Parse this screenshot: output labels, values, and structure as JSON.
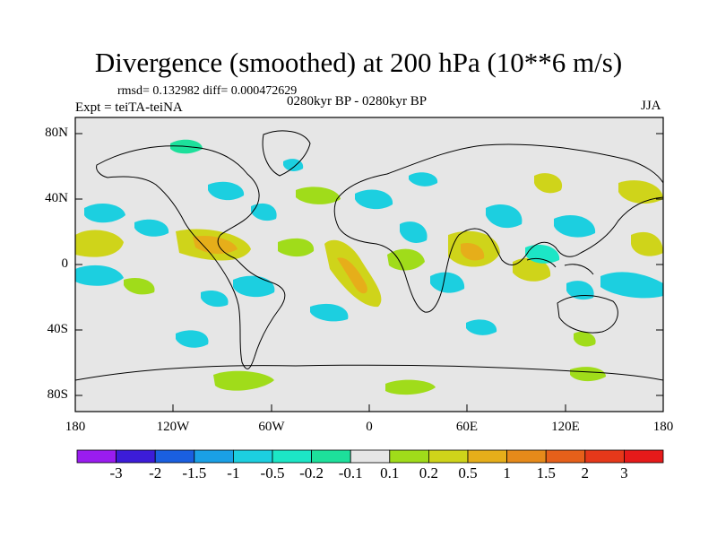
{
  "title": "Divergence (smoothed) at 200 hPa (10**6 m/s)",
  "stats": "rmsd= 0.132982 diff= 0.000472629",
  "experiment": "Expt = teiTA-teiNA",
  "period": "0280kyr BP - 0280kyr BP",
  "season": "JJA",
  "lat_labels": [
    "80N",
    "40N",
    "0",
    "40S",
    "80S"
  ],
  "lon_labels": [
    "180",
    "120W",
    "60W",
    "0",
    "60E",
    "120E",
    "180"
  ],
  "colorbar": {
    "labels": [
      "-3",
      "-2",
      "-1.5",
      "-1",
      "-0.5",
      "-0.2",
      "-0.1",
      "0.1",
      "0.2",
      "0.5",
      "1",
      "1.5",
      "2",
      "3"
    ],
    "colors": [
      "#9a1cf0",
      "#3c1cd8",
      "#1a5fe0",
      "#1aa0e6",
      "#1ccfe0",
      "#1ce6c6",
      "#1de09b",
      "#e6e6e6",
      "#a0dc1a",
      "#cfd41a",
      "#e6ae1a",
      "#e68a1a",
      "#e6601a",
      "#e6381a",
      "#e61a1a"
    ]
  }
}
